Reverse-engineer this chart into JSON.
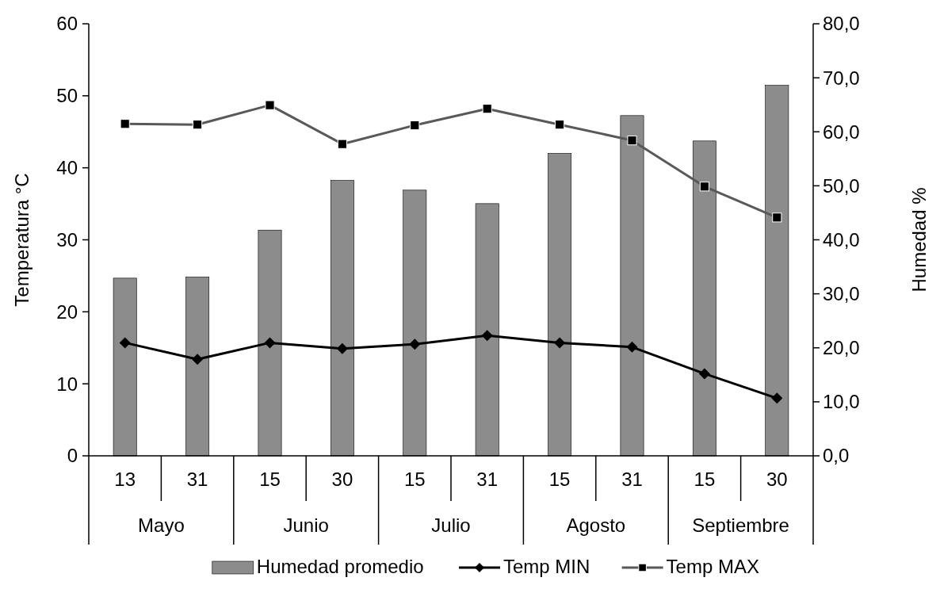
{
  "chart_data": {
    "type": "bar",
    "categories": [
      "13",
      "31",
      "15",
      "30",
      "15",
      "31",
      "15",
      "31",
      "15",
      "30"
    ],
    "annotations": [
      "Mayo",
      "Junio",
      "Julio",
      "Agosto",
      "Septiembre"
    ],
    "ylabel": "Temperatura °C",
    "y2label": "Humedad %",
    "ylim": [
      0,
      60
    ],
    "yticks": [
      0,
      10,
      20,
      30,
      40,
      50,
      60
    ],
    "y2lim": [
      0,
      80
    ],
    "y2ticks": [
      {
        "value": 0,
        "label": "0,0"
      },
      {
        "value": 10,
        "label": "10,0"
      },
      {
        "value": 20,
        "label": "20,0"
      },
      {
        "value": 30,
        "label": "30,0"
      },
      {
        "value": 40,
        "label": "40,0"
      },
      {
        "value": 50,
        "label": "50,0"
      },
      {
        "value": 60,
        "label": "60,0"
      },
      {
        "value": 70,
        "label": "70,0"
      },
      {
        "value": 80,
        "label": "80,0"
      }
    ],
    "legend": "bottom",
    "series": [
      {
        "name": "Humedad promedio",
        "axis": "y2",
        "color": "#8c8c8c",
        "values": [
          32.9,
          33.1,
          41.8,
          51.0,
          49.2,
          46.7,
          56.0,
          63.0,
          58.3,
          68.6
        ]
      },
      {
        "name": "Temp MIN",
        "type": "line",
        "color": "#000000",
        "marker": "diamond",
        "values": [
          15.7,
          13.4,
          15.7,
          14.9,
          15.5,
          16.7,
          15.7,
          15.1,
          11.4,
          8.0
        ]
      },
      {
        "name": "Temp MAX",
        "type": "line",
        "color": "#595959",
        "marker": "square",
        "values": [
          46.1,
          46.0,
          48.7,
          43.3,
          45.9,
          48.2,
          46.0,
          43.8,
          37.4,
          33.1
        ]
      }
    ]
  }
}
